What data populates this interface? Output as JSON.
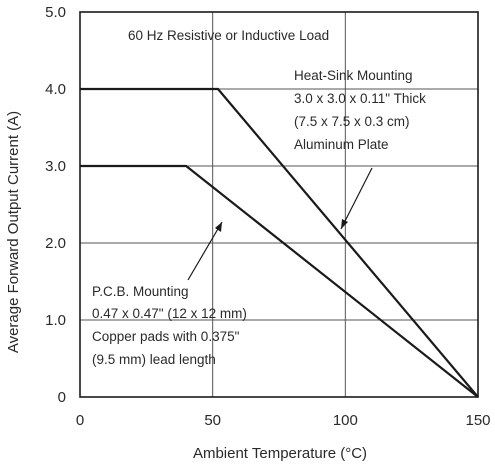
{
  "chart_data": {
    "type": "line",
    "title": "",
    "xlabel": "Ambient Temperature (°C)",
    "ylabel": "Average Forward Output Current (A)",
    "xlim": [
      0,
      150
    ],
    "ylim": [
      0,
      5.0
    ],
    "x_ticks": [
      0,
      50,
      100,
      150
    ],
    "x_tick_labels": [
      "0",
      "50",
      "100",
      "150"
    ],
    "y_ticks": [
      0,
      1.0,
      2.0,
      3.0,
      4.0,
      5.0
    ],
    "y_tick_labels": [
      "0",
      "1.0",
      "2.0",
      "3.0",
      "4.0",
      "5.0"
    ],
    "grid": true,
    "series": [
      {
        "x": [
          0,
          52,
          150
        ],
        "y": [
          4.0,
          4.0,
          0
        ],
        "color": "#1a1a1a"
      },
      {
        "x": [
          0,
          40,
          150
        ],
        "y": [
          3.0,
          3.0,
          0
        ],
        "color": "#1a1a1a"
      }
    ],
    "annotations": [
      {
        "lines": [
          "60 Hz Resistive or Inductive Load"
        ]
      },
      {
        "lines": [
          "Heat-Sink Mounting",
          "3.0 x 3.0 x 0.11\" Thick",
          "(7.5 x 7.5 x 0.3 cm)",
          "Aluminum Plate"
        ]
      },
      {
        "lines": [
          "P.C.B. Mounting",
          "0.47 x 0.47\" (12 x 12 mm)",
          "Copper pads with 0.375\"",
          "(9.5 mm) lead length"
        ]
      }
    ]
  }
}
